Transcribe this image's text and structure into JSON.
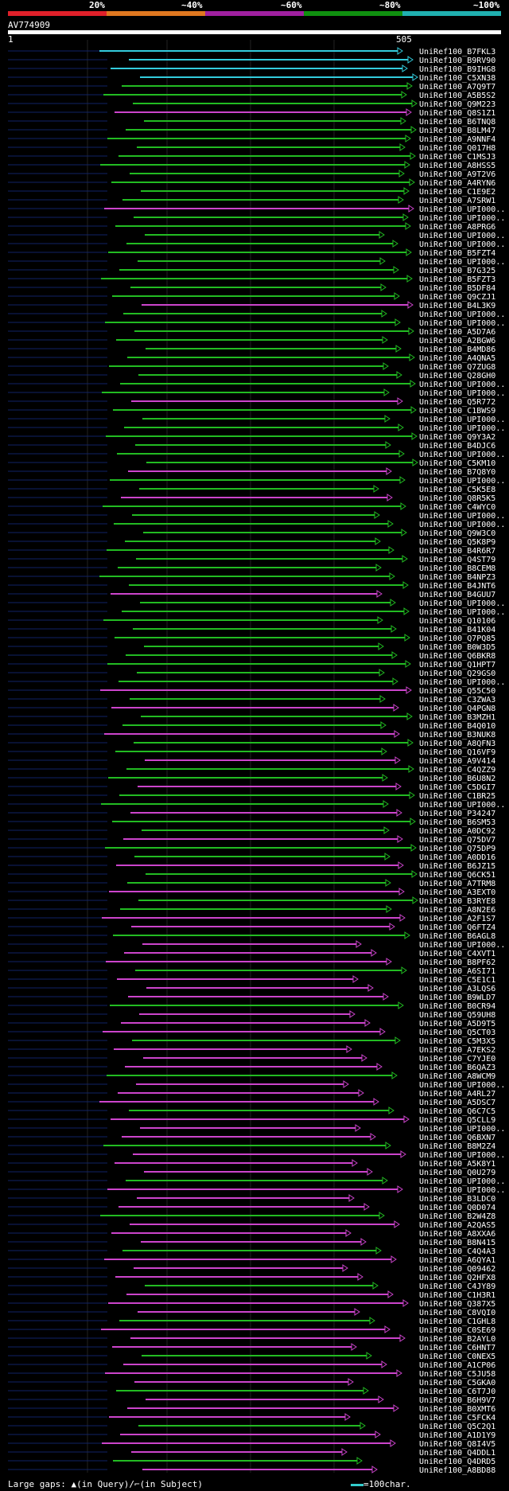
{
  "header": {
    "legend_colors": [
      "#e0202a",
      "#e07820",
      "#a020a0",
      "#109010",
      "#20b0b0"
    ],
    "legend_labels": [
      "20%",
      "~40%",
      "~60%",
      "~80%",
      "~100%"
    ],
    "query_name": "AV774909",
    "query_start": "1",
    "query_end": "505"
  },
  "colors": {
    "cyan": "#33ccdd",
    "green": "#22bb22",
    "magenta": "#cc44cc"
  },
  "hit_names": [
    "UniRef100_B7FKL3",
    "UniRef100_B9RV90",
    "UniRef100_B9IHG8",
    "UniRef100_C5XN38",
    "UniRef100_A7Q9T7",
    "UniRef100_A5B5S2",
    "UniRef100_Q9M223",
    "UniRef100_Q8S1Z1",
    "UniRef100_B6TNQ8",
    "UniRef100_B8LM47",
    "UniRef100_A9NNF4",
    "UniRef100_Q017H8",
    "UniRef100_C1MSJ3",
    "UniRef100_A8HSS5",
    "UniRef100_A9T2V6",
    "UniRef100_A4RYN6",
    "UniRef100_C1E9E2",
    "UniRef100_A7SRW1",
    "UniRef100_UPI000..",
    "UniRef100_UPI000..",
    "UniRef100_A8PRG6",
    "UniRef100_UPI000..",
    "UniRef100_UPI000..",
    "UniRef100_B5FZT4",
    "UniRef100_UPI000..",
    "UniRef100_B7G325",
    "UniRef100_B5FZT3",
    "UniRef100_B5DF84",
    "UniRef100_Q9CZJ1",
    "UniRef100_B4L3K9",
    "UniRef100_UPI000..",
    "UniRef100_UPI000..",
    "UniRef100_A5D7A6",
    "UniRef100_A2BGW6",
    "UniRef100_B4MD86",
    "UniRef100_A4QNA5",
    "UniRef100_Q7ZUG8",
    "UniRef100_Q28GH0",
    "UniRef100_UPI000..",
    "UniRef100_UPI000..",
    "UniRef100_Q5R772",
    "UniRef100_C1BWS9",
    "UniRef100_UPI000..",
    "UniRef100_UPI000..",
    "UniRef100_Q9Y3A2",
    "UniRef100_B4DJC6",
    "UniRef100_UPI000..",
    "UniRef100_C5KM10",
    "UniRef100_B7Q8Y0",
    "UniRef100_UPI000..",
    "UniRef100_C5K5E8",
    "UniRef100_Q8R5K5",
    "UniRef100_C4WYC0",
    "UniRef100_UPI000..",
    "UniRef100_UPI000..",
    "UniRef100_Q9W3C0",
    "UniRef100_Q5K8P9",
    "UniRef100_B4R6R7",
    "UniRef100_Q4ST79",
    "UniRef100_B8CEM8",
    "UniRef100_B4NPZ3",
    "UniRef100_B4JNT6",
    "UniRef100_B4GUU7",
    "UniRef100_UPI000..",
    "UniRef100_UPI000..",
    "UniRef100_Q10106",
    "UniRef100_B41K04",
    "UniRef100_Q7PQ85",
    "UniRef100_B0W3D5",
    "UniRef100_Q6BKR8",
    "UniRef100_Q1HPT7",
    "UniRef100_Q29GS0",
    "UniRef100_UPI000..",
    "UniRef100_Q55C50",
    "UniRef100_C3ZWA3",
    "UniRef100_Q4PGN8",
    "UniRef100_B3MZH1",
    "UniRef100_B4Q010",
    "UniRef100_B3NUK8",
    "UniRef100_A8QFN3",
    "UniRef100_Q16VF9",
    "UniRef100_A9V414",
    "UniRef100_C4QZZ9",
    "UniRef100_B6U8N2",
    "UniRef100_C5DGI7",
    "UniRef100_C1BR25",
    "UniRef100_UPI000..",
    "UniRef100_P34247",
    "UniRef100_B6SM53",
    "UniRef100_A0DC92",
    "UniRef100_Q75DV7",
    "UniRef100_Q75DP9",
    "UniRef100_A0DD16",
    "UniRef100_B6JZ15",
    "UniRef100_Q6CK51",
    "UniRef100_A7TRM8",
    "UniRef100_A3EXT0",
    "UniRef100_B3RYE8",
    "UniRef100_A8N2E6",
    "UniRef100_A2F1S7",
    "UniRef100_Q6FTZ4",
    "UniRef100_B6AGL8",
    "UniRef100_UPI000..",
    "UniRef100_C4XVT1",
    "UniRef100_B8PF62",
    "UniRef100_A6SI71",
    "UniRef100_C5E1C1",
    "UniRef100_A3LQS6",
    "UniRef100_B9WLD7",
    "UniRef100_B0CR94",
    "UniRef100_Q59UH8",
    "UniRef100_A5D9T5",
    "UniRef100_Q5CT03",
    "UniRef100_C5M3X5",
    "UniRef100_A7EKS2",
    "UniRef100_C7YJE0",
    "UniRef100_B6QAZ3",
    "UniRef100_A8WCM9",
    "UniRef100_UPI000..",
    "UniRef100_A4RL27",
    "UniRef100_A5DSC7",
    "UniRef100_Q6C7C5",
    "UniRef100_Q5CLL9",
    "UniRef100_UPI000..",
    "UniRef100_Q6BXN7",
    "UniRef100_B8M2Z4",
    "UniRef100_UPI000..",
    "UniRef100_A5K8Y1",
    "UniRef100_Q0U279",
    "UniRef100_UPI000..",
    "UniRef100_UPI000..",
    "UniRef100_B3LDC0",
    "UniRef100_Q0D074",
    "UniRef100_B2W4Z8",
    "UniRef100_A2QAS5",
    "UniRef100_A8XXA6",
    "UniRef100_B8N415",
    "UniRef100_C4Q4A3",
    "UniRef100_A6QYA1",
    "UniRef100_Q09462",
    "UniRef100_Q2HFX8",
    "UniRef100_C4JY89",
    "UniRef100_C1H3R1",
    "UniRef100_Q387X5",
    "UniRef100_C8VQI0",
    "UniRef100_C1GHL8",
    "UniRef100_C0SE69",
    "UniRef100_B2AYL0",
    "UniRef100_C6HNT7",
    "UniRef100_C0NEX5",
    "UniRef100_A1CP06",
    "UniRef100_C5JU58",
    "UniRef100_C5GKA0",
    "UniRef100_C6T7J0",
    "UniRef100_B6H9V7",
    "UniRef100_B0XMT6",
    "UniRef100_C5FCK4",
    "UniRef100_Q5C2Q1",
    "UniRef100_A1D1Y9",
    "UniRef100_Q8I4V5",
    "UniRef100_Q4DDL1",
    "UniRef100_Q4DRD5",
    "UniRef100_A8BD88"
  ],
  "footer": {
    "gaps_legend": "Large gaps: ▲(in Query)/⌐(in Subject)",
    "scale_legend": "=100char."
  }
}
